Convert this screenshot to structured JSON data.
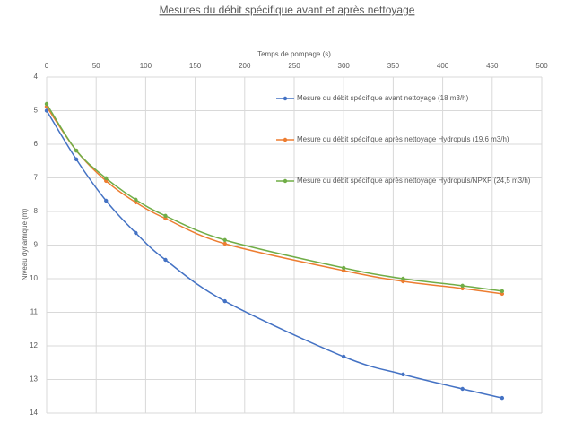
{
  "chart_data": {
    "type": "line",
    "title": "Mesures du débit spécifique avant et après nettoyage",
    "x_label": "Temps de pompage (s)",
    "y_label": "Niveau dynamique (m)",
    "x": [
      0,
      30,
      60,
      90,
      120,
      180,
      300,
      360,
      420,
      460
    ],
    "series": [
      {
        "name": "Mesure du débit spécifique avant nettoyage (18 m3/h)",
        "color": "#4472c4",
        "values": [
          5.0,
          6.45,
          7.68,
          8.64,
          9.44,
          10.67,
          12.32,
          12.85,
          13.28,
          13.55
        ]
      },
      {
        "name": "Mesure du débit spécifique après nettoyage Hydropuls (19,6 m3/h)",
        "color": "#ed7d31",
        "values": [
          4.88,
          6.19,
          7.09,
          7.73,
          8.21,
          8.96,
          9.76,
          10.08,
          10.29,
          10.45
        ]
      },
      {
        "name": "Mesure du débit spécifique après nettoyage Hydropuls/NPXP (24,5 m3/h)",
        "color": "#70ad47",
        "values": [
          4.8,
          6.19,
          7.01,
          7.65,
          8.13,
          8.85,
          9.68,
          10.0,
          10.21,
          10.37
        ]
      }
    ],
    "xlim": [
      0,
      500
    ],
    "xticks": [
      0,
      50,
      100,
      150,
      200,
      250,
      300,
      350,
      400,
      450,
      500
    ],
    "ylim": [
      4,
      14
    ],
    "yticks": [
      4,
      5,
      6,
      7,
      8,
      9,
      10,
      11,
      12,
      13,
      14
    ],
    "y_reversed": true,
    "x_axis_position": "top",
    "grid": true
  }
}
